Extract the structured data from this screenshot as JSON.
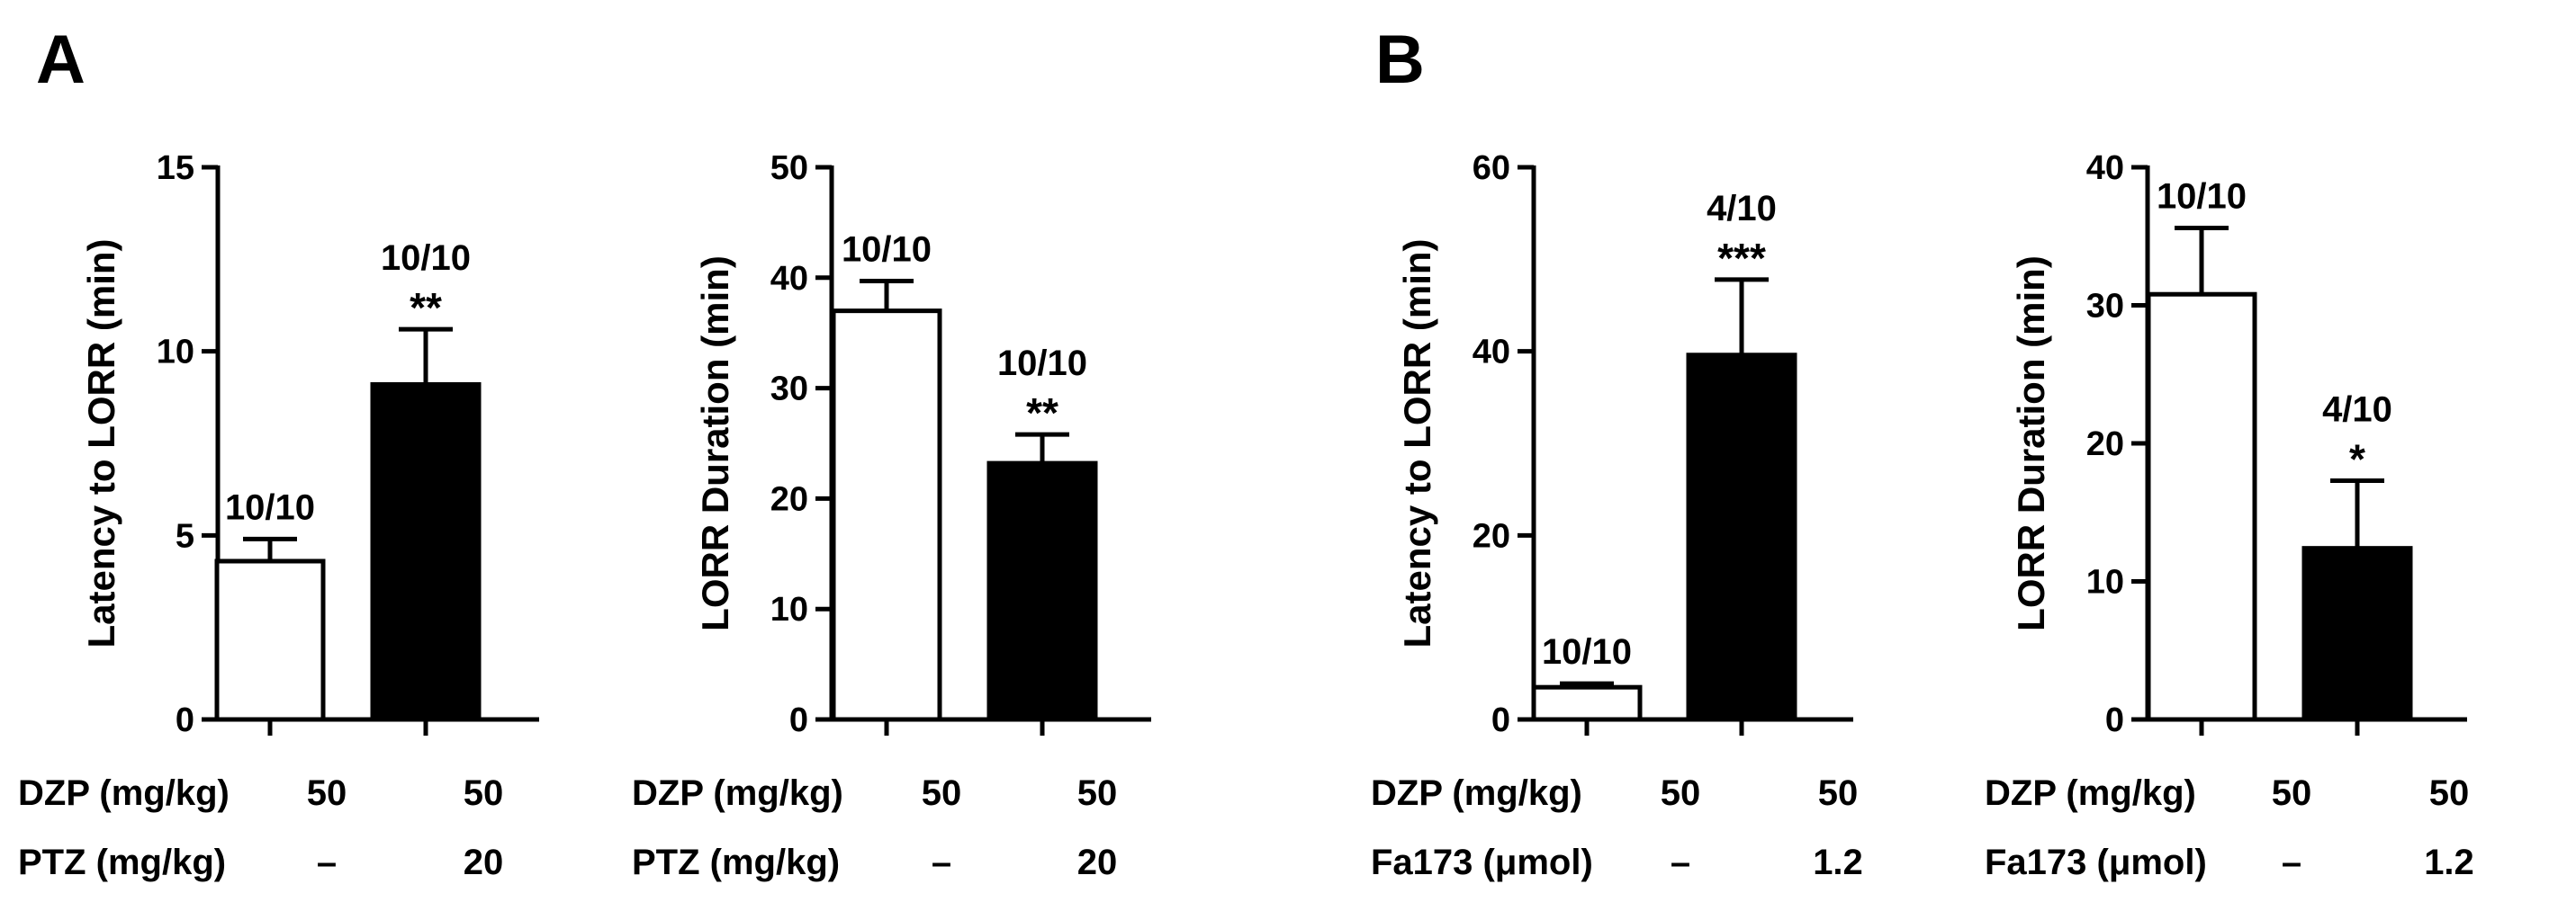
{
  "panels": [
    {
      "letter": "A",
      "charts": [
        {
          "type": "bar",
          "ylabel": "Latency to LORR (min)",
          "ylim": [
            0,
            15
          ],
          "yticks": [
            0,
            5,
            10,
            15
          ],
          "row_labels": [
            "DZP (mg/kg)",
            "PTZ (mg/kg)"
          ],
          "bars": [
            {
              "value": 4.3,
              "error": 0.6,
              "fill": "#ffffff",
              "ratio": "10/10",
              "sig": "",
              "rows": [
                "50",
                "–"
              ]
            },
            {
              "value": 9.1,
              "error": 1.5,
              "fill": "#000000",
              "ratio": "10/10",
              "sig": "**",
              "rows": [
                "50",
                "20"
              ]
            }
          ]
        },
        {
          "type": "bar",
          "ylabel": "LORR Duration (min)",
          "ylim": [
            0,
            50
          ],
          "yticks": [
            0,
            10,
            20,
            30,
            40,
            50
          ],
          "row_labels": [
            "DZP (mg/kg)",
            "PTZ (mg/kg)"
          ],
          "bars": [
            {
              "value": 37.0,
              "error": 2.7,
              "fill": "#ffffff",
              "ratio": "10/10",
              "sig": "",
              "rows": [
                "50",
                "–"
              ]
            },
            {
              "value": 23.2,
              "error": 2.6,
              "fill": "#000000",
              "ratio": "10/10",
              "sig": "**",
              "rows": [
                "50",
                "20"
              ]
            }
          ]
        }
      ]
    },
    {
      "letter": "B",
      "charts": [
        {
          "type": "bar",
          "ylabel": "Latency to LORR (min)",
          "ylim": [
            0,
            60
          ],
          "yticks": [
            0,
            20,
            40,
            60
          ],
          "row_labels": [
            "DZP (mg/kg)",
            "Fa173 (μmol)"
          ],
          "bars": [
            {
              "value": 3.5,
              "error": 0.4,
              "fill": "#ffffff",
              "ratio": "10/10",
              "sig": "",
              "rows": [
                "50",
                "–"
              ]
            },
            {
              "value": 39.6,
              "error": 8.2,
              "fill": "#000000",
              "ratio": "4/10",
              "sig": "***",
              "rows": [
                "50",
                "1.2"
              ]
            }
          ]
        },
        {
          "type": "bar",
          "ylabel": "LORR Duration (min)",
          "ylim": [
            0,
            40
          ],
          "yticks": [
            0,
            10,
            20,
            30,
            40
          ],
          "row_labels": [
            "DZP (mg/kg)",
            "Fa173 (μmol)"
          ],
          "bars": [
            {
              "value": 30.8,
              "error": 4.8,
              "fill": "#ffffff",
              "ratio": "10/10",
              "sig": "",
              "rows": [
                "50",
                "–"
              ]
            },
            {
              "value": 12.4,
              "error": 4.9,
              "fill": "#000000",
              "ratio": "4/10",
              "sig": "*",
              "rows": [
                "50",
                "1.2"
              ]
            }
          ]
        }
      ]
    }
  ],
  "chart_data": [
    {
      "type": "bar",
      "panel": "A",
      "categories": [
        "DZP 50 / PTZ –",
        "DZP 50 / PTZ 20"
      ],
      "values": [
        4.3,
        9.1
      ],
      "errors": [
        0.6,
        1.5
      ],
      "annotations": [
        "10/10",
        "10/10 **"
      ],
      "ylabel": "Latency to LORR (min)",
      "ylim": [
        0,
        15
      ],
      "grid": false
    },
    {
      "type": "bar",
      "panel": "A",
      "categories": [
        "DZP 50 / PTZ –",
        "DZP 50 / PTZ 20"
      ],
      "values": [
        37.0,
        23.2
      ],
      "errors": [
        2.7,
        2.6
      ],
      "annotations": [
        "10/10",
        "10/10 **"
      ],
      "ylabel": "LORR Duration (min)",
      "ylim": [
        0,
        50
      ],
      "grid": false
    },
    {
      "type": "bar",
      "panel": "B",
      "categories": [
        "DZP 50 / Fa173 –",
        "DZP 50 / Fa173 1.2"
      ],
      "values": [
        3.5,
        39.6
      ],
      "errors": [
        0.4,
        8.2
      ],
      "annotations": [
        "10/10",
        "4/10 ***"
      ],
      "ylabel": "Latency to LORR (min)",
      "ylim": [
        0,
        60
      ],
      "grid": false
    },
    {
      "type": "bar",
      "panel": "B",
      "categories": [
        "DZP 50 / Fa173 –",
        "DZP 50 / Fa173 1.2"
      ],
      "values": [
        30.8,
        12.4
      ],
      "errors": [
        4.8,
        4.9
      ],
      "annotations": [
        "10/10",
        "4/10 *"
      ],
      "ylabel": "LORR Duration (min)",
      "ylim": [
        0,
        40
      ],
      "grid": false
    }
  ]
}
